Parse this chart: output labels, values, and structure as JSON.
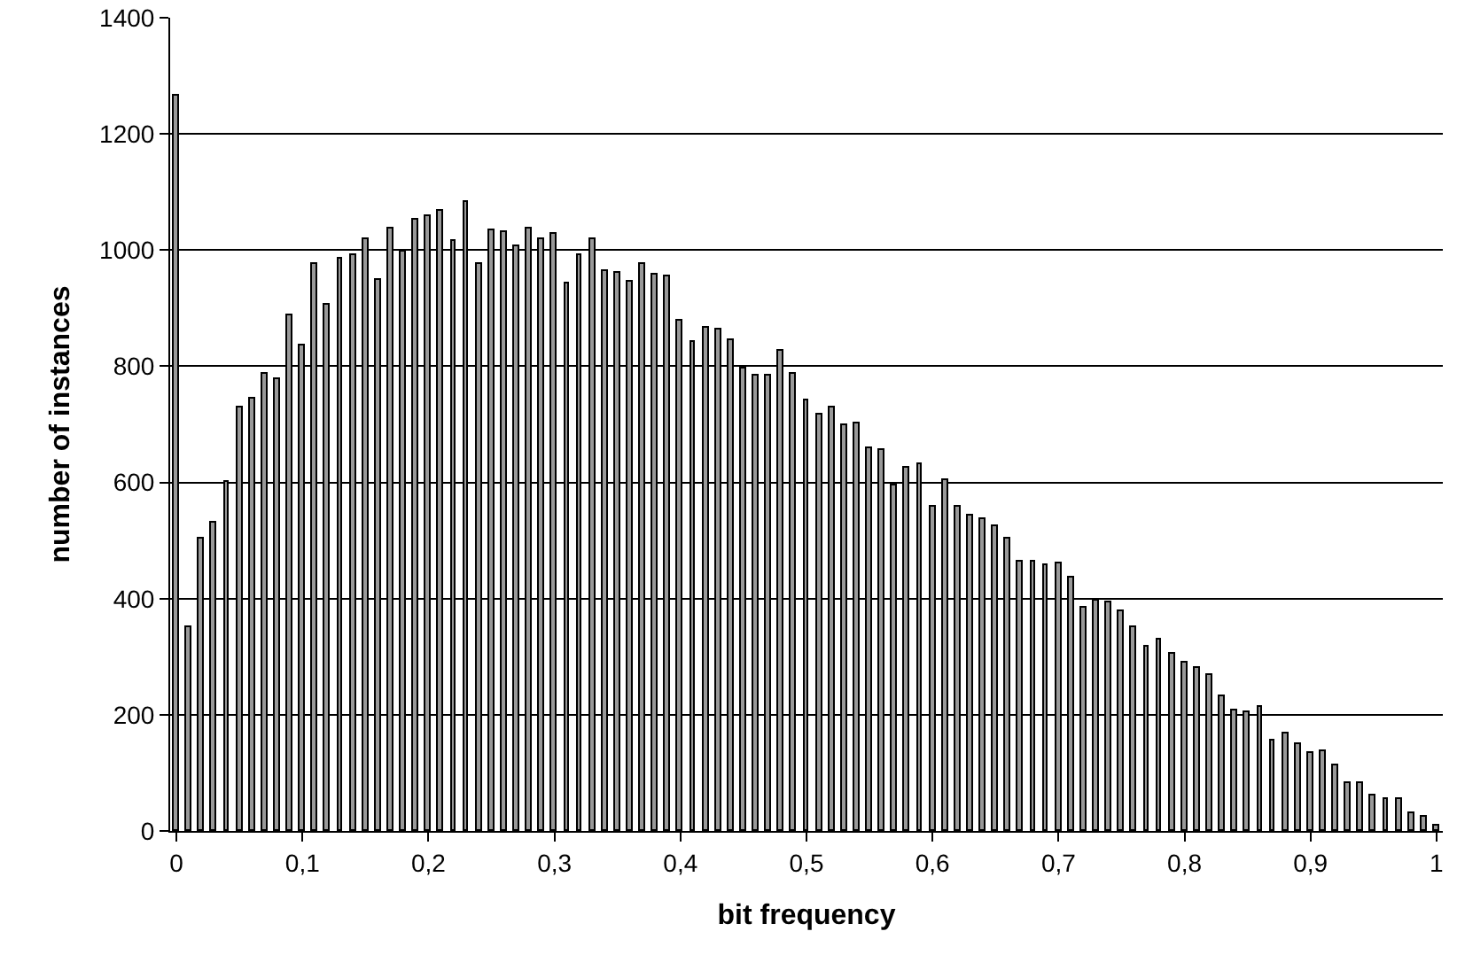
{
  "chart_data": {
    "type": "bar",
    "xlabel": "bit frequency",
    "ylabel": "number of instances",
    "x": [
      0,
      0.01,
      0.02,
      0.03,
      0.04,
      0.05,
      0.06,
      0.07,
      0.08,
      0.09,
      0.1,
      0.11,
      0.12,
      0.13,
      0.14,
      0.15,
      0.16,
      0.17,
      0.18,
      0.19,
      0.2,
      0.21,
      0.22,
      0.23,
      0.24,
      0.25,
      0.26,
      0.27,
      0.28,
      0.29,
      0.3,
      0.31,
      0.32,
      0.33,
      0.34,
      0.35,
      0.36,
      0.37,
      0.38,
      0.39,
      0.4,
      0.41,
      0.42,
      0.43,
      0.44,
      0.45,
      0.46,
      0.47,
      0.48,
      0.49,
      0.5,
      0.51,
      0.52,
      0.53,
      0.54,
      0.55,
      0.56,
      0.57,
      0.58,
      0.59,
      0.6,
      0.61,
      0.62,
      0.63,
      0.64,
      0.65,
      0.66,
      0.67,
      0.68,
      0.69,
      0.7,
      0.71,
      0.72,
      0.73,
      0.74,
      0.75,
      0.76,
      0.77,
      0.78,
      0.79,
      0.8,
      0.81,
      0.82,
      0.83,
      0.84,
      0.85,
      0.86,
      0.87,
      0.88,
      0.89,
      0.9,
      0.91,
      0.92,
      0.93,
      0.94,
      0.95,
      0.96,
      0.97,
      0.98,
      0.99,
      1
    ],
    "values": [
      1265,
      350,
      502,
      531,
      602,
      728,
      743,
      787,
      777,
      889,
      837,
      975,
      907,
      986,
      992,
      1020,
      949,
      1037,
      996,
      1053,
      1057,
      1069,
      1016,
      1083,
      977,
      1034,
      1031,
      1006,
      1038,
      1020,
      1027,
      942,
      991,
      1019,
      965,
      961,
      945,
      975,
      959,
      956,
      877,
      842,
      867,
      862,
      845,
      795,
      785,
      785,
      828,
      788,
      741,
      717,
      729,
      699,
      701,
      660,
      657,
      596,
      624,
      632,
      559,
      603,
      558,
      542,
      538,
      524,
      504,
      464,
      464,
      457,
      461,
      435,
      383,
      396,
      394,
      378,
      351,
      318,
      328,
      305,
      289,
      280,
      268,
      233,
      206,
      203,
      215,
      157,
      167,
      149,
      135,
      136,
      112,
      83,
      82,
      62,
      56,
      56,
      31,
      23,
      10
    ],
    "color": "#999999",
    "xlim": [
      -0.005,
      1.005
    ],
    "xticks": [
      0,
      {
        "value": 0.1,
        "label": "0,1"
      },
      {
        "value": 0.2,
        "label": "0,2"
      },
      {
        "value": 0.3,
        "label": "0,3"
      },
      {
        "value": 0.4,
        "label": "0,4"
      },
      {
        "value": 0.5,
        "label": "0,5"
      },
      {
        "value": 0.6,
        "label": "0,6"
      },
      {
        "value": 0.7,
        "label": "0,7"
      },
      {
        "value": 0.8,
        "label": "0,8"
      },
      {
        "value": 0.9,
        "label": "0,9"
      },
      1
    ],
    "ylim": [
      0,
      1400
    ],
    "yticks": [
      0,
      200,
      400,
      600,
      800,
      1000,
      1200,
      1400
    ],
    "grid": "y"
  }
}
